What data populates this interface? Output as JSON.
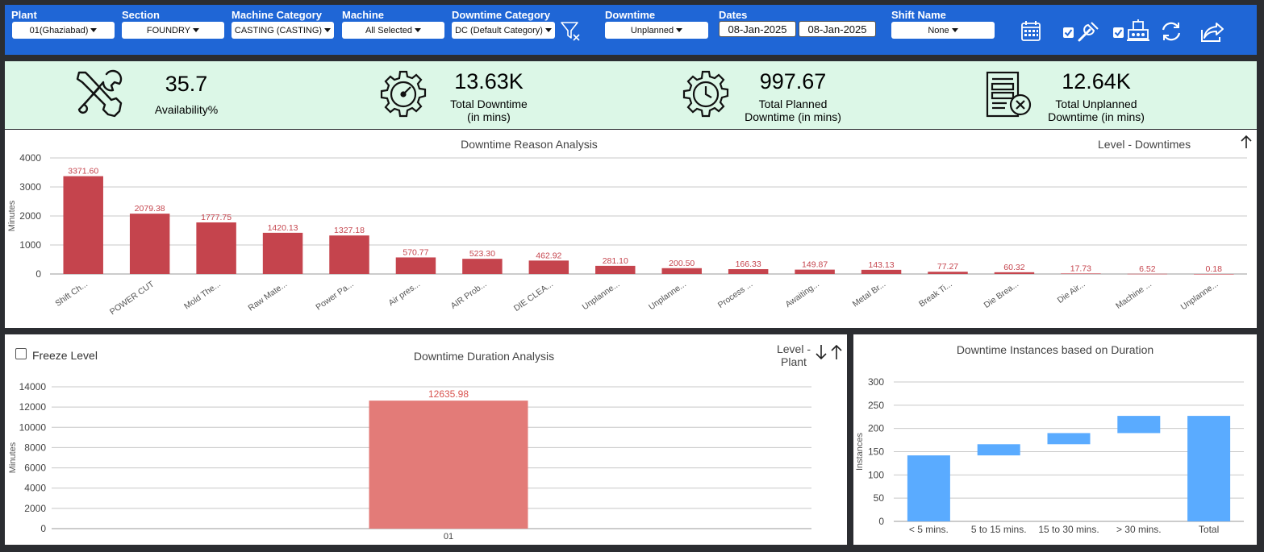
{
  "filters": {
    "plant": {
      "label": "Plant",
      "value": "01(Ghaziabad)"
    },
    "section": {
      "label": "Section",
      "value": "FOUNDRY"
    },
    "machine_category": {
      "label": "Machine Category",
      "value": "CASTING (CASTING)"
    },
    "machine": {
      "label": "Machine",
      "value": "All Selected"
    },
    "downtime_category": {
      "label": "Downtime Category",
      "value": "DC (Default Category)"
    },
    "downtime": {
      "label": "Downtime",
      "value": "Unplanned"
    },
    "dates": {
      "label": "Dates",
      "from": "08-Jan-2025",
      "to": "08-Jan-2025"
    },
    "shift_name": {
      "label": "Shift Name",
      "value": "None"
    }
  },
  "toolbar": {
    "icons": [
      "clear-filter-icon",
      "calendar-icon",
      "wrench-icon",
      "machine-icon",
      "refresh-icon",
      "share-icon"
    ],
    "checkbox_1_checked": true,
    "checkbox_2_checked": true
  },
  "kpis": [
    {
      "value": "35.7",
      "label": "Availability%",
      "icon": "tools-icon"
    },
    {
      "value": "13.63K",
      "label": "Total Downtime\n(in mins)",
      "icon": "gauge-gear-icon"
    },
    {
      "value": "997.67",
      "label": "Total Planned\nDowntime (in mins)",
      "icon": "clock-gear-icon"
    },
    {
      "value": "12.64K",
      "label": "Total Unplanned\nDowntime (in mins)",
      "icon": "document-cancel-icon"
    }
  ],
  "reason_panel": {
    "title": "Downtime Reason Analysis",
    "level_label": "Level - Downtimes"
  },
  "duration_panel": {
    "title": "Downtime Duration Analysis",
    "freeze_label": "Freeze Level",
    "level_label": "Level -\nPlant"
  },
  "instances_panel": {
    "title": "Downtime Instances based on Duration"
  },
  "chart_data": [
    {
      "type": "bar",
      "title": "Downtime Reason Analysis",
      "ylabel": "Minutes",
      "xlabel": "",
      "ylim": [
        0,
        4000
      ],
      "yticks": [
        0,
        1000,
        2000,
        3000,
        4000
      ],
      "color": "#c5444d",
      "categories": [
        "Shift Ch...",
        "POWER CUT",
        "Mold The...",
        "Raw Mate...",
        "Power Pa...",
        "Air pres...",
        "AIR Prob...",
        "DIE CLEA...",
        "Unplanne...",
        "Unplanne...",
        "Process ...",
        "Awaiting...",
        "Metal Br...",
        "Break Ti...",
        "Die Brea...",
        "Die Air...",
        "Machine ...",
        "Unplanne..."
      ],
      "values": [
        3371.6,
        2079.38,
        1777.75,
        1420.13,
        1327.18,
        570.77,
        523.3,
        462.92,
        281.1,
        200.5,
        166.33,
        149.87,
        143.13,
        77.27,
        60.32,
        17.73,
        6.52,
        0.18
      ],
      "data_labels": [
        "3371.60",
        "2079.38",
        "1777.75",
        "1420.13",
        "1327.18",
        "570.77",
        "523.30",
        "462.92",
        "281.10",
        "200.50",
        "166.33",
        "149.87",
        "143.13",
        "77.27",
        "60.32",
        "17.73",
        "6.52",
        "0.18"
      ],
      "grid": true
    },
    {
      "type": "bar",
      "title": "Downtime Duration Analysis",
      "ylabel": "Minutes",
      "xlabel": "",
      "ylim": [
        0,
        14000
      ],
      "yticks": [
        0,
        2000,
        4000,
        6000,
        8000,
        10000,
        12000,
        14000
      ],
      "color": "#e37b78",
      "categories": [
        "01"
      ],
      "values": [
        12635.98
      ],
      "data_labels": [
        "12635.98"
      ],
      "grid": true
    },
    {
      "type": "bar",
      "subtype": "waterfall",
      "title": "Downtime Instances based on Duration",
      "ylabel": "Instances",
      "xlabel": "",
      "ylim": [
        0,
        300
      ],
      "yticks": [
        0,
        50,
        100,
        150,
        200,
        250,
        300
      ],
      "color": "#5aabff",
      "categories": [
        "< 5 mins.",
        "5 to 15 mins.",
        "15 to 30 mins.",
        "> 30 mins.",
        "Total"
      ],
      "values": [
        142,
        24,
        24,
        37,
        227
      ],
      "grid": true
    }
  ]
}
